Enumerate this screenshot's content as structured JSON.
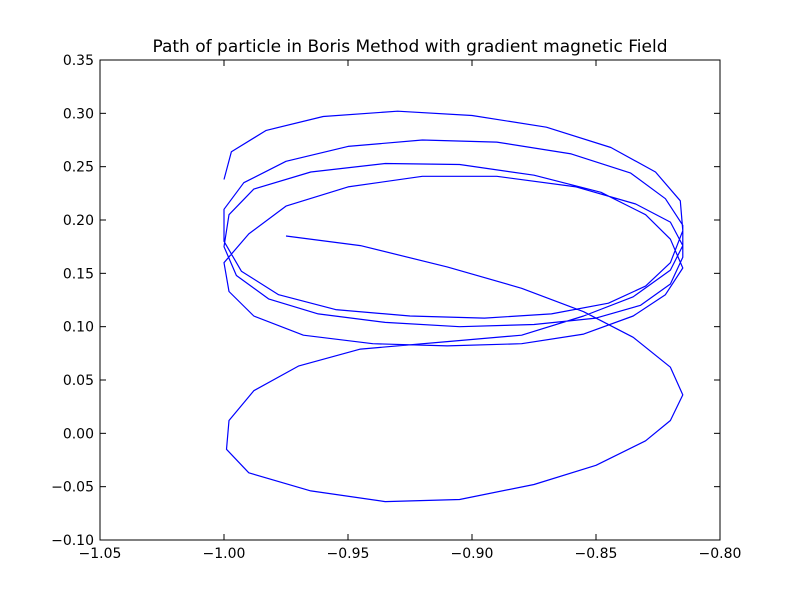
{
  "chart_data": {
    "type": "line",
    "title": "Path of particle in Boris Method with gradient magnetic Field",
    "xlabel": "",
    "ylabel": "",
    "xlim": [
      -1.05,
      -0.8
    ],
    "ylim": [
      -0.1,
      0.35
    ],
    "x_ticks": [
      -1.05,
      -1.0,
      -0.95,
      -0.9,
      -0.85,
      -0.8
    ],
    "x_tick_labels": [
      "−1.05",
      "−1.00",
      "−0.95",
      "−0.90",
      "−0.85",
      "−0.80"
    ],
    "y_ticks": [
      -0.1,
      -0.05,
      0.0,
      0.05,
      0.1,
      0.15,
      0.2,
      0.25,
      0.3,
      0.35
    ],
    "y_tick_labels": [
      "−0.10",
      "−0.05",
      "0.00",
      "0.05",
      "0.10",
      "0.15",
      "0.20",
      "0.25",
      "0.30",
      "0.35"
    ],
    "grid": false,
    "line_color": "#0000ff",
    "series": [
      {
        "values": [
          [
            -0.975,
            0.185
          ],
          [
            -0.945,
            0.176
          ],
          [
            -0.91,
            0.156
          ],
          [
            -0.88,
            0.136
          ],
          [
            -0.855,
            0.114
          ],
          [
            -0.835,
            0.09
          ],
          [
            -0.82,
            0.062
          ],
          [
            -0.815,
            0.036
          ],
          [
            -0.82,
            0.012
          ],
          [
            -0.83,
            -0.007
          ],
          [
            -0.85,
            -0.03
          ],
          [
            -0.875,
            -0.048
          ],
          [
            -0.905,
            -0.062
          ],
          [
            -0.935,
            -0.064
          ],
          [
            -0.965,
            -0.054
          ],
          [
            -0.99,
            -0.037
          ],
          [
            -0.999,
            -0.015
          ],
          [
            -0.998,
            0.012
          ],
          [
            -0.988,
            0.04
          ],
          [
            -0.97,
            0.063
          ],
          [
            -0.945,
            0.079
          ],
          [
            -0.91,
            0.086
          ],
          [
            -0.88,
            0.092
          ],
          [
            -0.855,
            0.11
          ],
          [
            -0.835,
            0.128
          ],
          [
            -0.82,
            0.153
          ],
          [
            -0.815,
            0.176
          ],
          [
            -0.82,
            0.198
          ],
          [
            -0.834,
            0.215
          ],
          [
            -0.858,
            0.231
          ],
          [
            -0.89,
            0.241
          ],
          [
            -0.92,
            0.241
          ],
          [
            -0.95,
            0.231
          ],
          [
            -0.975,
            0.213
          ],
          [
            -0.99,
            0.187
          ],
          [
            -1.0,
            0.16
          ],
          [
            -0.998,
            0.133
          ],
          [
            -0.988,
            0.11
          ],
          [
            -0.968,
            0.092
          ],
          [
            -0.94,
            0.084
          ],
          [
            -0.91,
            0.082
          ],
          [
            -0.88,
            0.084
          ],
          [
            -0.855,
            0.093
          ],
          [
            -0.835,
            0.11
          ],
          [
            -0.822,
            0.13
          ],
          [
            -0.815,
            0.155
          ],
          [
            -0.82,
            0.182
          ],
          [
            -0.83,
            0.205
          ],
          [
            -0.848,
            0.226
          ],
          [
            -0.875,
            0.242
          ],
          [
            -0.905,
            0.252
          ],
          [
            -0.935,
            0.253
          ],
          [
            -0.965,
            0.245
          ],
          [
            -0.988,
            0.229
          ],
          [
            -0.998,
            0.205
          ],
          [
            -1.0,
            0.175
          ],
          [
            -0.995,
            0.148
          ],
          [
            -0.982,
            0.126
          ],
          [
            -0.962,
            0.112
          ],
          [
            -0.935,
            0.104
          ],
          [
            -0.905,
            0.1
          ],
          [
            -0.875,
            0.102
          ],
          [
            -0.85,
            0.108
          ],
          [
            -0.832,
            0.12
          ],
          [
            -0.82,
            0.14
          ],
          [
            -0.815,
            0.165
          ],
          [
            -0.815,
            0.195
          ],
          [
            -0.822,
            0.22
          ],
          [
            -0.836,
            0.244
          ],
          [
            -0.86,
            0.262
          ],
          [
            -0.89,
            0.273
          ],
          [
            -0.92,
            0.275
          ],
          [
            -0.95,
            0.269
          ],
          [
            -0.975,
            0.255
          ],
          [
            -0.992,
            0.235
          ],
          [
            -1.0,
            0.21
          ],
          [
            -1.0,
            0.18
          ],
          [
            -0.993,
            0.152
          ],
          [
            -0.978,
            0.13
          ],
          [
            -0.955,
            0.116
          ],
          [
            -0.925,
            0.11
          ],
          [
            -0.895,
            0.108
          ],
          [
            -0.868,
            0.112
          ],
          [
            -0.845,
            0.122
          ],
          [
            -0.83,
            0.138
          ],
          [
            -0.82,
            0.16
          ],
          [
            -0.815,
            0.19
          ],
          [
            -0.816,
            0.218
          ],
          [
            -0.826,
            0.245
          ],
          [
            -0.844,
            0.268
          ],
          [
            -0.87,
            0.287
          ],
          [
            -0.9,
            0.298
          ],
          [
            -0.93,
            0.302
          ],
          [
            -0.96,
            0.297
          ],
          [
            -0.983,
            0.284
          ],
          [
            -0.997,
            0.264
          ],
          [
            -1.0,
            0.238
          ]
        ]
      }
    ]
  }
}
